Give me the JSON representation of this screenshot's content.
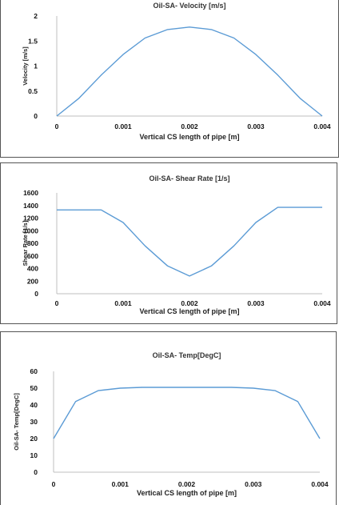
{
  "chart_data": [
    {
      "type": "line",
      "title": "Oil-SA- Velocity [m/s]",
      "xlabel": "Vertical CS length of pipe [m]",
      "ylabel": "Velocity [m/s]",
      "xlim": [
        0,
        0.004
      ],
      "ylim": [
        0,
        2
      ],
      "x_ticks": [
        "0",
        "0.001",
        "0.002",
        "0.003",
        "0.004"
      ],
      "y_ticks": [
        "0",
        "0.5",
        "1",
        "1.5",
        "2"
      ],
      "grid": false,
      "color": "#5b9bd5",
      "series": [
        {
          "x": [
            0,
            0.00033,
            0.00067,
            0.001,
            0.00133,
            0.00167,
            0.002,
            0.00233,
            0.00267,
            0.003,
            0.00333,
            0.00367,
            0.004
          ],
          "y": [
            0,
            0.35,
            0.82,
            1.23,
            1.56,
            1.73,
            1.78,
            1.73,
            1.56,
            1.23,
            0.82,
            0.35,
            0
          ]
        }
      ]
    },
    {
      "type": "line",
      "title": "Oil-SA- Shear Rate [1/s]",
      "xlabel": "Vertical CS length of pipe [m]",
      "ylabel": "Shear Rate [1/s]",
      "xlim": [
        0,
        0.004
      ],
      "ylim": [
        0,
        1600
      ],
      "x_ticks": [
        "0",
        "0.001",
        "0.002",
        "0.003",
        "0.004"
      ],
      "y_ticks": [
        "0",
        "200",
        "400",
        "600",
        "800",
        "1000",
        "1200",
        "1400",
        "1600"
      ],
      "grid": false,
      "color": "#5b9bd5",
      "series": [
        {
          "x": [
            0,
            0.00033,
            0.00067,
            0.001,
            0.00133,
            0.00167,
            0.002,
            0.00233,
            0.00267,
            0.003,
            0.00333,
            0.00367,
            0.004
          ],
          "y": [
            1330,
            1330,
            1330,
            1130,
            760,
            440,
            280,
            440,
            760,
            1130,
            1370,
            1370,
            1370
          ]
        }
      ]
    },
    {
      "type": "line",
      "title": "Oil-SA- Temp[DegC]",
      "xlabel": "Vertical CS length of pipe [m]",
      "ylabel": "Oil-SA- Temp[DegC]",
      "xlim": [
        0,
        0.004
      ],
      "ylim": [
        0,
        60
      ],
      "x_ticks": [
        "0",
        "0.001",
        "0.002",
        "0.003",
        "0.004"
      ],
      "y_ticks": [
        "0",
        "10",
        "20",
        "30",
        "40",
        "50",
        "60"
      ],
      "grid": false,
      "color": "#5b9bd5",
      "series": [
        {
          "x": [
            0,
            0.00033,
            0.00067,
            0.001,
            0.00133,
            0.00167,
            0.002,
            0.00233,
            0.00267,
            0.003,
            0.00333,
            0.00367,
            0.004
          ],
          "y": [
            20,
            42,
            48.5,
            50,
            50.5,
            50.5,
            50.5,
            50.5,
            50.5,
            50,
            48.5,
            42,
            20
          ]
        }
      ]
    }
  ]
}
